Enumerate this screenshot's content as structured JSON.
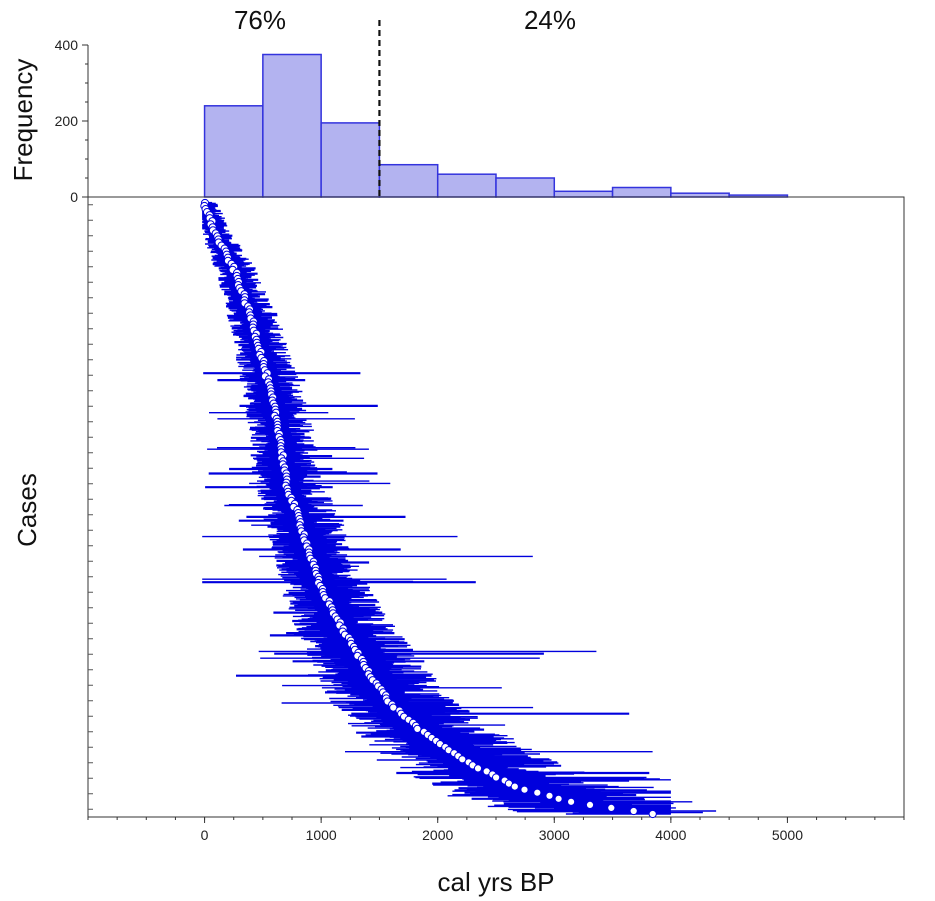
{
  "chart_data": [
    {
      "type": "bar",
      "ylabel": "Frequency",
      "xlim": [
        -1000,
        6000
      ],
      "ylim": [
        0,
        400
      ],
      "y_ticks": [
        "0",
        "200",
        "400"
      ],
      "bin_edges": [
        0,
        500,
        1000,
        1500,
        2000,
        2500,
        3000,
        3500,
        4000,
        4500,
        5000
      ],
      "values": [
        240,
        375,
        195,
        85,
        60,
        50,
        15,
        25,
        10,
        5
      ],
      "bar_fill": "#b3b3f0",
      "bar_stroke": "#3333dd",
      "divider_x": 1500,
      "annotations": [
        "76%",
        "24%"
      ]
    },
    {
      "type": "scatter",
      "xlabel": "cal yrs BP",
      "ylabel": "Cases",
      "xlim": [
        -1000,
        6000
      ],
      "x_ticks": [
        "0",
        "1000",
        "2000",
        "3000",
        "4000",
        "5000"
      ],
      "n_cases": 805,
      "grid": false,
      "point_color": "#ffffff",
      "range_color": "#0000dd",
      "sample_ranges": [
        {
          "case": 0,
          "lo": 0,
          "hi": 150
        },
        {
          "case": 60,
          "lo": 100,
          "hi": 400
        },
        {
          "case": 150,
          "lo": 300,
          "hi": 650
        },
        {
          "case": 240,
          "lo": 350,
          "hi": 800
        },
        {
          "case": 330,
          "lo": 400,
          "hi": 1050
        },
        {
          "case": 420,
          "lo": 250,
          "hi": 1450
        },
        {
          "case": 510,
          "lo": 350,
          "hi": 2000
        },
        {
          "case": 580,
          "lo": 900,
          "hi": 2400
        },
        {
          "case": 640,
          "lo": 1350,
          "hi": 1800
        },
        {
          "case": 700,
          "lo": 250,
          "hi": 3950
        },
        {
          "case": 760,
          "lo": 1900,
          "hi": 4400
        },
        {
          "case": 800,
          "lo": 3200,
          "hi": 4000
        }
      ]
    }
  ]
}
